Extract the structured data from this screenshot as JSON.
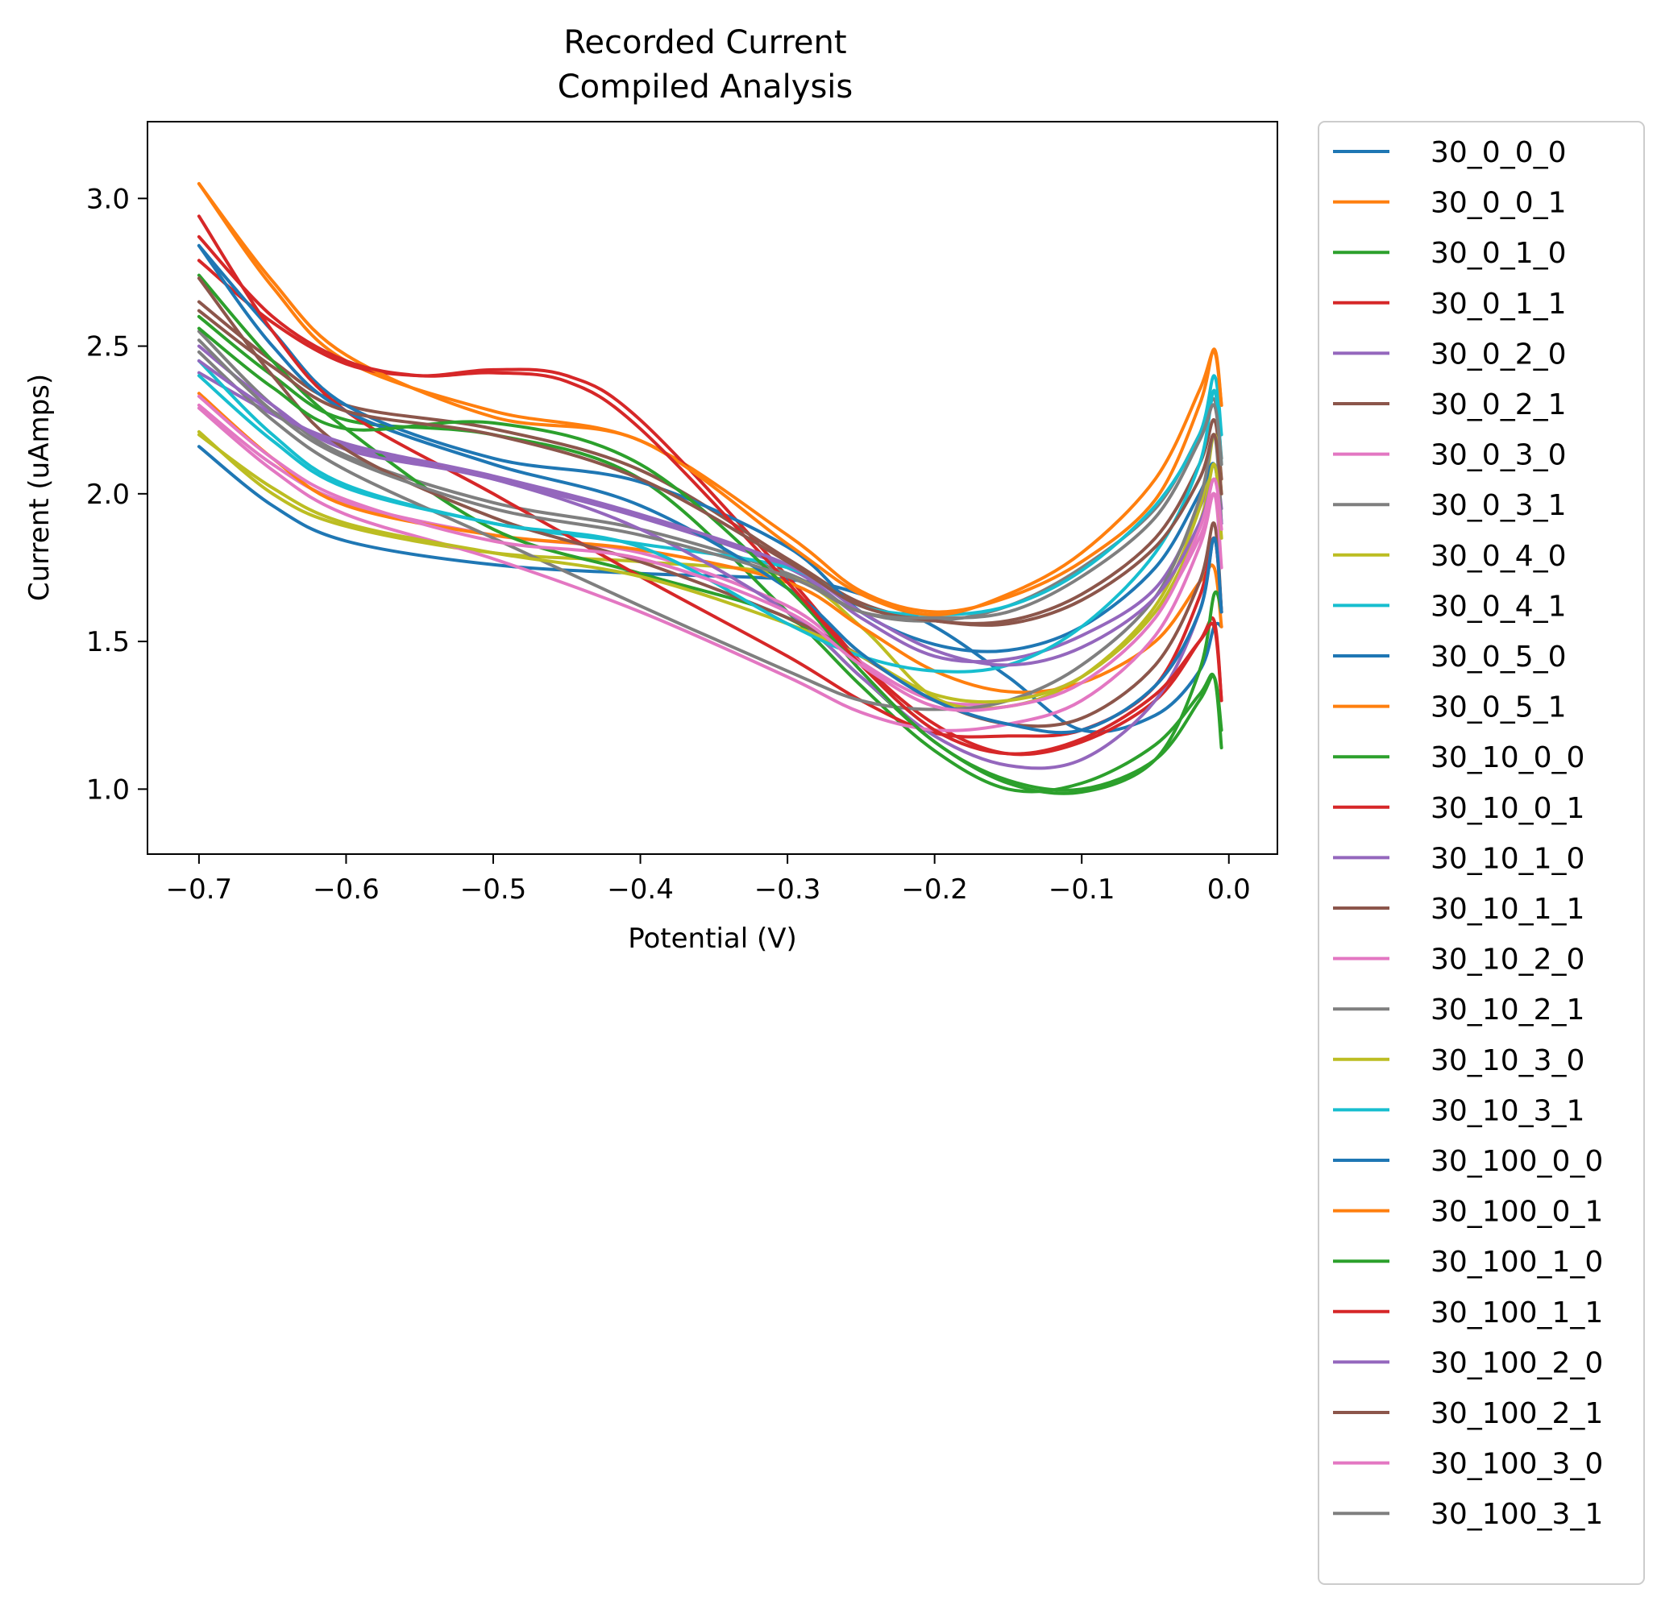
{
  "chart_data": {
    "type": "line",
    "title": "Recorded Current",
    "subtitle": "Compiled Analysis",
    "xlabel": "Potential (V)",
    "ylabel": "Current (uAmps)",
    "xlim": [
      -0.735,
      0.033
    ],
    "ylim": [
      0.78,
      3.26
    ],
    "xticks": [
      -0.7,
      -0.6,
      -0.5,
      -0.4,
      -0.3,
      -0.2,
      -0.1,
      0.0
    ],
    "xtick_labels": [
      "−0.7",
      "−0.6",
      "−0.5",
      "−0.4",
      "−0.3",
      "−0.2",
      "−0.1",
      "0.0"
    ],
    "yticks": [
      1.0,
      1.5,
      2.0,
      2.5,
      3.0
    ],
    "ytick_labels": [
      "1.0",
      "1.5",
      "2.0",
      "2.5",
      "3.0"
    ],
    "grid": false,
    "legend_position": "outside-right",
    "series": [
      {
        "name": "30_0_0_0",
        "color": "#1f77b4",
        "x": [
          -0.7,
          -0.65,
          -0.6,
          -0.5,
          -0.4,
          -0.3,
          -0.25,
          -0.2,
          -0.15,
          -0.1,
          -0.05,
          -0.02,
          -0.01,
          -0.005
        ],
        "y": [
          2.16,
          1.96,
          1.84,
          1.76,
          1.73,
          1.71,
          1.66,
          1.55,
          1.38,
          1.2,
          1.25,
          1.4,
          1.55,
          1.55
        ]
      },
      {
        "name": "30_0_0_1",
        "color": "#ff7f0e",
        "x": [
          -0.7,
          -0.65,
          -0.6,
          -0.5,
          -0.4,
          -0.3,
          -0.25,
          -0.2,
          -0.15,
          -0.1,
          -0.05,
          -0.02,
          -0.01,
          -0.005
        ],
        "y": [
          3.05,
          2.7,
          2.45,
          2.28,
          2.18,
          1.86,
          1.67,
          1.6,
          1.65,
          1.77,
          1.98,
          2.3,
          2.49,
          2.3
        ]
      },
      {
        "name": "30_0_1_0",
        "color": "#2ca02c",
        "x": [
          -0.7,
          -0.65,
          -0.6,
          -0.5,
          -0.4,
          -0.3,
          -0.25,
          -0.2,
          -0.15,
          -0.1,
          -0.05,
          -0.02,
          -0.01,
          -0.005
        ],
        "y": [
          2.6,
          2.4,
          2.25,
          2.2,
          2.05,
          1.6,
          1.35,
          1.13,
          1.0,
          1.02,
          1.15,
          1.32,
          1.38,
          1.14
        ]
      },
      {
        "name": "30_0_1_1",
        "color": "#d62728",
        "x": [
          -0.7,
          -0.65,
          -0.6,
          -0.55,
          -0.5,
          -0.45,
          -0.4,
          -0.3,
          -0.25,
          -0.2,
          -0.15,
          -0.1,
          -0.05,
          -0.02,
          -0.01,
          -0.005
        ],
        "y": [
          2.79,
          2.58,
          2.44,
          2.4,
          2.42,
          2.4,
          2.25,
          1.72,
          1.43,
          1.22,
          1.12,
          1.16,
          1.3,
          1.5,
          1.57,
          1.3
        ]
      },
      {
        "name": "30_0_2_0",
        "color": "#9467bd",
        "x": [
          -0.7,
          -0.65,
          -0.6,
          -0.5,
          -0.4,
          -0.3,
          -0.25,
          -0.2,
          -0.15,
          -0.1,
          -0.05,
          -0.02,
          -0.01,
          -0.005
        ],
        "y": [
          2.41,
          2.27,
          2.16,
          2.05,
          1.92,
          1.75,
          1.58,
          1.45,
          1.44,
          1.52,
          1.68,
          1.95,
          2.1,
          1.95
        ]
      },
      {
        "name": "30_0_2_1",
        "color": "#8c564b",
        "x": [
          -0.7,
          -0.65,
          -0.6,
          -0.5,
          -0.4,
          -0.3,
          -0.25,
          -0.2,
          -0.15,
          -0.1,
          -0.05,
          -0.02,
          -0.01,
          -0.005
        ],
        "y": [
          2.65,
          2.45,
          2.3,
          2.22,
          2.08,
          1.78,
          1.63,
          1.57,
          1.57,
          1.66,
          1.85,
          2.1,
          2.25,
          2.05
        ]
      },
      {
        "name": "30_0_3_0",
        "color": "#e377c2",
        "x": [
          -0.7,
          -0.65,
          -0.6,
          -0.5,
          -0.4,
          -0.3,
          -0.25,
          -0.2,
          -0.15,
          -0.1,
          -0.05,
          -0.02,
          -0.01,
          -0.005
        ],
        "y": [
          2.3,
          2.1,
          1.97,
          1.86,
          1.8,
          1.62,
          1.43,
          1.3,
          1.3,
          1.38,
          1.6,
          1.85,
          2.0,
          1.85
        ]
      },
      {
        "name": "30_0_3_1",
        "color": "#7f7f7f",
        "x": [
          -0.7,
          -0.65,
          -0.6,
          -0.5,
          -0.4,
          -0.3,
          -0.25,
          -0.2,
          -0.15,
          -0.1,
          -0.05,
          -0.02,
          -0.01,
          -0.005
        ],
        "y": [
          2.55,
          2.3,
          2.13,
          1.97,
          1.88,
          1.73,
          1.6,
          1.57,
          1.62,
          1.75,
          1.95,
          2.2,
          2.32,
          2.12
        ]
      },
      {
        "name": "30_0_4_0",
        "color": "#bcbd22",
        "x": [
          -0.7,
          -0.65,
          -0.6,
          -0.5,
          -0.4,
          -0.3,
          -0.25,
          -0.2,
          -0.15,
          -0.1,
          -0.05,
          -0.02,
          -0.01,
          -0.005
        ],
        "y": [
          2.21,
          2.0,
          1.89,
          1.8,
          1.77,
          1.72,
          1.55,
          1.31,
          1.28,
          1.38,
          1.62,
          1.95,
          2.2,
          2.0
        ]
      },
      {
        "name": "30_0_4_1",
        "color": "#17becf",
        "x": [
          -0.7,
          -0.65,
          -0.6,
          -0.5,
          -0.4,
          -0.3,
          -0.25,
          -0.2,
          -0.15,
          -0.1,
          -0.05,
          -0.02,
          -0.01,
          -0.005
        ],
        "y": [
          2.45,
          2.2,
          2.03,
          1.9,
          1.83,
          1.75,
          1.62,
          1.59,
          1.62,
          1.74,
          1.96,
          2.2,
          2.4,
          2.2
        ]
      },
      {
        "name": "30_0_5_0",
        "color": "#1f77b4",
        "x": [
          -0.7,
          -0.65,
          -0.6,
          -0.5,
          -0.4,
          -0.3,
          -0.25,
          -0.2,
          -0.15,
          -0.1,
          -0.05,
          -0.02,
          -0.01,
          -0.005
        ],
        "y": [
          2.84,
          2.55,
          2.3,
          2.12,
          2.04,
          1.82,
          1.6,
          1.49,
          1.47,
          1.55,
          1.75,
          2.0,
          2.1,
          1.9
        ]
      },
      {
        "name": "30_0_5_1",
        "color": "#ff7f0e",
        "x": [
          -0.7,
          -0.65,
          -0.6,
          -0.5,
          -0.4,
          -0.3,
          -0.25,
          -0.2,
          -0.15,
          -0.1,
          -0.05,
          -0.02,
          -0.01,
          -0.005
        ],
        "y": [
          2.34,
          2.12,
          1.96,
          1.86,
          1.81,
          1.7,
          1.55,
          1.4,
          1.33,
          1.36,
          1.5,
          1.7,
          1.75,
          1.55
        ]
      },
      {
        "name": "30_10_0_0",
        "color": "#2ca02c",
        "x": [
          -0.7,
          -0.65,
          -0.6,
          -0.5,
          -0.4,
          -0.3,
          -0.25,
          -0.2,
          -0.15,
          -0.1,
          -0.05,
          -0.02,
          -0.01,
          -0.005
        ],
        "y": [
          2.74,
          2.45,
          2.22,
          1.88,
          1.73,
          1.58,
          1.38,
          1.16,
          1.02,
          0.99,
          1.1,
          1.4,
          1.66,
          1.6
        ]
      },
      {
        "name": "30_10_0_1",
        "color": "#d62728",
        "x": [
          -0.7,
          -0.65,
          -0.6,
          -0.5,
          -0.4,
          -0.3,
          -0.25,
          -0.2,
          -0.15,
          -0.1,
          -0.05,
          -0.02,
          -0.01,
          -0.005
        ],
        "y": [
          2.94,
          2.55,
          2.28,
          2.0,
          1.72,
          1.45,
          1.3,
          1.19,
          1.18,
          1.2,
          1.35,
          1.65,
          1.85,
          1.6
        ]
      },
      {
        "name": "30_10_1_0",
        "color": "#9467bd",
        "x": [
          -0.7,
          -0.65,
          -0.6,
          -0.5,
          -0.4,
          -0.3,
          -0.25,
          -0.2,
          -0.15,
          -0.1,
          -0.05,
          -0.02,
          -0.01,
          -0.005
        ],
        "y": [
          2.5,
          2.3,
          2.15,
          2.05,
          1.88,
          1.6,
          1.38,
          1.18,
          1.08,
          1.1,
          1.3,
          1.6,
          1.85,
          1.6
        ]
      },
      {
        "name": "30_10_1_1",
        "color": "#8c564b",
        "x": [
          -0.7,
          -0.65,
          -0.6,
          -0.5,
          -0.4,
          -0.3,
          -0.25,
          -0.2,
          -0.15,
          -0.1,
          -0.05,
          -0.02,
          -0.01,
          -0.005
        ],
        "y": [
          2.73,
          2.4,
          2.15,
          1.92,
          1.77,
          1.58,
          1.45,
          1.3,
          1.22,
          1.24,
          1.42,
          1.7,
          1.9,
          1.6
        ]
      },
      {
        "name": "30_10_2_0",
        "color": "#e377c2",
        "x": [
          -0.7,
          -0.65,
          -0.6,
          -0.5,
          -0.4,
          -0.3,
          -0.25,
          -0.2,
          -0.15,
          -0.1,
          -0.05,
          -0.02,
          -0.01,
          -0.005
        ],
        "y": [
          2.29,
          2.08,
          1.93,
          1.78,
          1.6,
          1.38,
          1.26,
          1.2,
          1.22,
          1.3,
          1.52,
          1.82,
          2.0,
          1.75
        ]
      },
      {
        "name": "30_10_2_1",
        "color": "#7f7f7f",
        "x": [
          -0.7,
          -0.65,
          -0.6,
          -0.5,
          -0.4,
          -0.3,
          -0.25,
          -0.2,
          -0.15,
          -0.1,
          -0.05,
          -0.02,
          -0.01,
          -0.005
        ],
        "y": [
          2.48,
          2.25,
          2.08,
          1.85,
          1.62,
          1.4,
          1.3,
          1.27,
          1.3,
          1.42,
          1.65,
          1.98,
          2.2,
          1.9
        ]
      },
      {
        "name": "30_10_3_0",
        "color": "#bcbd22",
        "x": [
          -0.7,
          -0.65,
          -0.6,
          -0.5,
          -0.4,
          -0.3,
          -0.25,
          -0.2,
          -0.15,
          -0.1,
          -0.05,
          -0.02,
          -0.01,
          -0.005
        ],
        "y": [
          2.2,
          2.02,
          1.9,
          1.8,
          1.72,
          1.56,
          1.45,
          1.32,
          1.3,
          1.38,
          1.6,
          1.9,
          2.1,
          1.85
        ]
      },
      {
        "name": "30_10_3_1",
        "color": "#17becf",
        "x": [
          -0.7,
          -0.65,
          -0.6,
          -0.5,
          -0.4,
          -0.3,
          -0.25,
          -0.2,
          -0.15,
          -0.1,
          -0.05,
          -0.02,
          -0.01,
          -0.005
        ],
        "y": [
          2.4,
          2.18,
          2.02,
          1.9,
          1.82,
          1.56,
          1.45,
          1.4,
          1.42,
          1.55,
          1.8,
          2.1,
          2.35,
          2.1
        ]
      },
      {
        "name": "30_100_0_0",
        "color": "#1f77b4",
        "x": [
          -0.7,
          -0.65,
          -0.6,
          -0.5,
          -0.4,
          -0.3,
          -0.25,
          -0.2,
          -0.15,
          -0.1,
          -0.05,
          -0.02,
          -0.01,
          -0.005
        ],
        "y": [
          2.84,
          2.5,
          2.28,
          2.1,
          1.96,
          1.68,
          1.46,
          1.3,
          1.22,
          1.2,
          1.35,
          1.6,
          1.85,
          1.6
        ]
      },
      {
        "name": "30_100_0_1",
        "color": "#ff7f0e",
        "x": [
          -0.7,
          -0.65,
          -0.6,
          -0.5,
          -0.4,
          -0.3,
          -0.25,
          -0.2,
          -0.15,
          -0.1,
          -0.05,
          -0.02,
          -0.01,
          -0.005
        ],
        "y": [
          3.05,
          2.72,
          2.47,
          2.26,
          2.18,
          1.83,
          1.66,
          1.59,
          1.66,
          1.8,
          2.05,
          2.35,
          2.48,
          2.3
        ]
      },
      {
        "name": "30_100_1_0",
        "color": "#2ca02c",
        "x": [
          -0.7,
          -0.65,
          -0.6,
          -0.5,
          -0.4,
          -0.3,
          -0.25,
          -0.2,
          -0.15,
          -0.1,
          -0.05,
          -0.02,
          -0.01,
          -0.005
        ],
        "y": [
          2.56,
          2.36,
          2.22,
          2.24,
          2.1,
          1.68,
          1.4,
          1.16,
          1.03,
          1.0,
          1.1,
          1.3,
          1.38,
          1.2
        ]
      },
      {
        "name": "30_100_1_1",
        "color": "#d62728",
        "x": [
          -0.7,
          -0.65,
          -0.6,
          -0.55,
          -0.5,
          -0.45,
          -0.4,
          -0.3,
          -0.25,
          -0.2,
          -0.15,
          -0.1,
          -0.05,
          -0.02,
          -0.01,
          -0.005
        ],
        "y": [
          2.87,
          2.6,
          2.45,
          2.4,
          2.41,
          2.38,
          2.22,
          1.7,
          1.42,
          1.2,
          1.12,
          1.17,
          1.32,
          1.5,
          1.55,
          1.3
        ]
      },
      {
        "name": "30_100_2_0",
        "color": "#9467bd",
        "x": [
          -0.7,
          -0.65,
          -0.6,
          -0.5,
          -0.4,
          -0.3,
          -0.25,
          -0.2,
          -0.15,
          -0.1,
          -0.05,
          -0.02,
          -0.01,
          -0.005
        ],
        "y": [
          2.45,
          2.28,
          2.17,
          2.06,
          1.93,
          1.76,
          1.6,
          1.47,
          1.42,
          1.48,
          1.65,
          1.9,
          2.05,
          1.9
        ]
      },
      {
        "name": "30_100_2_1",
        "color": "#8c564b",
        "x": [
          -0.7,
          -0.65,
          -0.6,
          -0.5,
          -0.4,
          -0.3,
          -0.25,
          -0.2,
          -0.15,
          -0.1,
          -0.05,
          -0.02,
          -0.01,
          -0.005
        ],
        "y": [
          2.62,
          2.43,
          2.28,
          2.2,
          2.05,
          1.77,
          1.62,
          1.57,
          1.56,
          1.64,
          1.82,
          2.05,
          2.2,
          2.0
        ]
      },
      {
        "name": "30_100_3_0",
        "color": "#e377c2",
        "x": [
          -0.7,
          -0.65,
          -0.6,
          -0.5,
          -0.4,
          -0.3,
          -0.25,
          -0.2,
          -0.15,
          -0.1,
          -0.05,
          -0.02,
          -0.01,
          -0.005
        ],
        "y": [
          2.33,
          2.12,
          1.98,
          1.84,
          1.78,
          1.6,
          1.42,
          1.28,
          1.28,
          1.36,
          1.58,
          1.88,
          2.05,
          1.88
        ]
      },
      {
        "name": "30_100_3_1",
        "color": "#7f7f7f",
        "x": [
          -0.7,
          -0.65,
          -0.6,
          -0.5,
          -0.4,
          -0.3,
          -0.25,
          -0.2,
          -0.15,
          -0.1,
          -0.05,
          -0.02,
          -0.01,
          -0.005
        ],
        "y": [
          2.52,
          2.28,
          2.12,
          1.95,
          1.86,
          1.72,
          1.6,
          1.58,
          1.6,
          1.72,
          1.92,
          2.18,
          2.3,
          2.1
        ]
      }
    ]
  }
}
